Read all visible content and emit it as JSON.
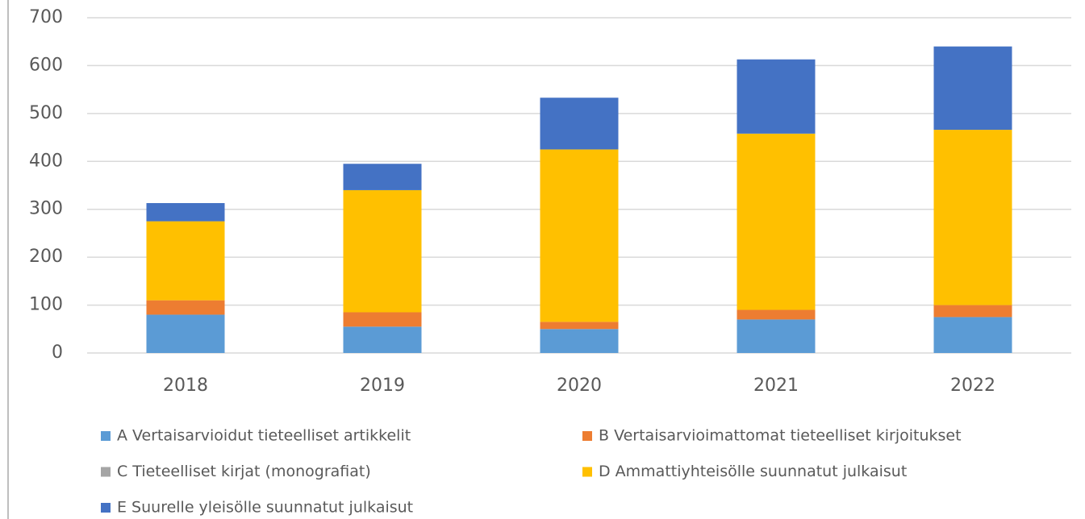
{
  "chart_data": {
    "type": "stacked_bar",
    "categories": [
      "2018",
      "2019",
      "2020",
      "2021",
      "2022"
    ],
    "series": [
      {
        "name": "A Vertaisarvioidut tieteelliset artikkelit",
        "color": "#5b9bd5",
        "values": [
          80,
          55,
          50,
          70,
          75
        ]
      },
      {
        "name": "B Vertaisarvioimattomat tieteelliset kirjoitukset",
        "color": "#ed7d31",
        "values": [
          30,
          30,
          15,
          20,
          25
        ]
      },
      {
        "name": "C Tieteelliset kirjat (monografiat)",
        "color": "#a5a5a5",
        "values": [
          0,
          0,
          0,
          0,
          0
        ]
      },
      {
        "name": "D Ammattiyhteisölle suunnatut julkaisut",
        "color": "#ffc000",
        "values": [
          165,
          255,
          360,
          368,
          366
        ]
      },
      {
        "name": "E Suurelle yleisölle suunnatut julkaisut",
        "color": "#4472c4",
        "values": [
          38,
          55,
          108,
          155,
          174
        ]
      }
    ],
    "ylim": [
      0,
      700
    ],
    "yticks": [
      0,
      100,
      200,
      300,
      400,
      500,
      600,
      700
    ],
    "grid": true,
    "legend": "bottom"
  }
}
